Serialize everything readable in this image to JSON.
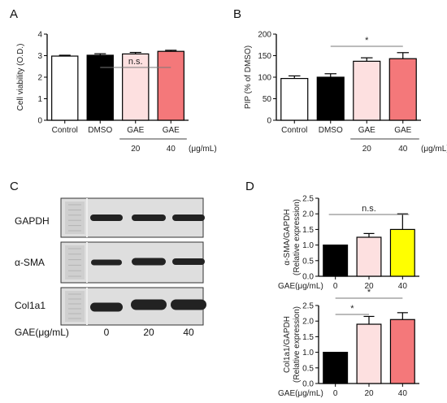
{
  "panels": {
    "a": "A",
    "b": "B",
    "c": "C",
    "d": "D"
  },
  "chart_data": [
    {
      "id": "A",
      "type": "bar",
      "categories": [
        "Control",
        "DMSO",
        "GAE",
        "GAE"
      ],
      "dose_labels": [
        "",
        "",
        "20",
        "40"
      ],
      "unit": "(μg/mL)",
      "values": [
        2.98,
        3.02,
        3.08,
        3.2
      ],
      "errors": [
        0.04,
        0.07,
        0.07,
        0.05
      ],
      "colors": [
        "#ffffff",
        "#000000",
        "#fde0e0",
        "#f4787a"
      ],
      "ylabel": "Cell viability (O.D.)",
      "ylim": [
        0,
        4
      ],
      "yticks": [
        "0",
        "1",
        "2",
        "3",
        "4"
      ],
      "significance": [
        {
          "from": 1,
          "to": 3,
          "label": "n.s."
        }
      ]
    },
    {
      "id": "B",
      "type": "bar",
      "categories": [
        "Control",
        "DMSO",
        "GAE",
        "GAE"
      ],
      "dose_labels": [
        "",
        "",
        "20",
        "40"
      ],
      "unit": "(μg/mL)",
      "values": [
        97,
        100,
        137,
        143
      ],
      "errors": [
        6,
        8,
        8,
        14
      ],
      "colors": [
        "#ffffff",
        "#000000",
        "#fde0e0",
        "#f4787a"
      ],
      "ylabel": "PIP (% of DMSO)",
      "ylim": [
        0,
        200
      ],
      "yticks": [
        "0",
        "50",
        "100",
        "150",
        "200"
      ],
      "significance": [
        {
          "from": 1,
          "to": 3,
          "label": "*"
        }
      ]
    },
    {
      "id": "D-top",
      "type": "bar",
      "categories": [
        "0",
        "20",
        "40"
      ],
      "values": [
        1.0,
        1.25,
        1.5
      ],
      "errors": [
        0,
        0.12,
        0.5
      ],
      "colors": [
        "#000000",
        "#fde0e0",
        "#ffff00"
      ],
      "ylabel": "α-SMA/GAPDH",
      "ylabel2": "(Relative expression)",
      "xlabel": "GAE(μg/mL)",
      "ylim": [
        0,
        2.5
      ],
      "yticks": [
        "0.0",
        "0.5",
        "1.0",
        "1.5",
        "2.0",
        "2.5"
      ],
      "significance": [
        {
          "from": 0,
          "to": 2,
          "label": "n.s."
        }
      ]
    },
    {
      "id": "D-bottom",
      "type": "bar",
      "categories": [
        "0",
        "20",
        "40"
      ],
      "values": [
        1.0,
        1.9,
        2.05
      ],
      "errors": [
        0,
        0.25,
        0.22
      ],
      "colors": [
        "#000000",
        "#fde0e0",
        "#f4787a"
      ],
      "ylabel": "Col1a1/GAPDH",
      "ylabel2": "(Relative expression)",
      "xlabel": "GAE(μg/mL)",
      "ylim": [
        0,
        2.5
      ],
      "yticks": [
        "0.0",
        "0.5",
        "1.0",
        "1.5",
        "2.0",
        "2.5"
      ],
      "significance": [
        {
          "from": 0,
          "to": 1,
          "label": "*"
        },
        {
          "from": 0,
          "to": 2,
          "label": "*"
        }
      ]
    }
  ],
  "blot": {
    "rows": [
      "GAPDH",
      "α-SMA",
      "Col1a1"
    ],
    "lane_labels": [
      "0",
      "20",
      "40"
    ],
    "xlabel": "GAE(μg/mL)"
  }
}
